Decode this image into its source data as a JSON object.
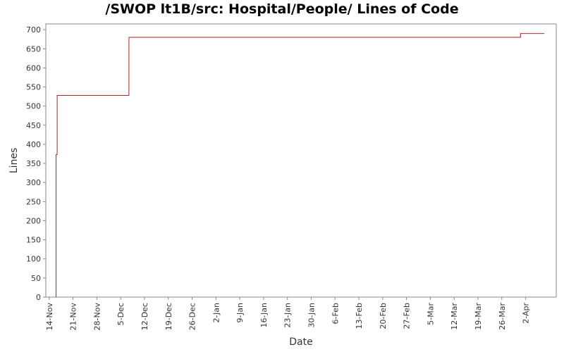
{
  "chart_data": {
    "type": "line",
    "title": "/SWOP lt1B/src: Hospital/People/ Lines of Code",
    "xlabel": "Date",
    "ylabel": "Lines",
    "ylim": [
      0,
      715
    ],
    "yticks": [
      0,
      50,
      100,
      150,
      200,
      250,
      300,
      350,
      400,
      450,
      500,
      550,
      600,
      650,
      700
    ],
    "x_range": [
      "2007-11-13",
      "2008-04-11"
    ],
    "xticks": [
      {
        "date": "2007-11-14",
        "label": "14-Nov"
      },
      {
        "date": "2007-11-21",
        "label": "21-Nov"
      },
      {
        "date": "2007-11-28",
        "label": "28-Nov"
      },
      {
        "date": "2007-12-05",
        "label": "5-Dec"
      },
      {
        "date": "2007-12-12",
        "label": "12-Dec"
      },
      {
        "date": "2007-12-19",
        "label": "19-Dec"
      },
      {
        "date": "2007-12-26",
        "label": "26-Dec"
      },
      {
        "date": "2008-01-02",
        "label": "2-Jan"
      },
      {
        "date": "2008-01-09",
        "label": "9-Jan"
      },
      {
        "date": "2008-01-16",
        "label": "16-Jan"
      },
      {
        "date": "2008-01-23",
        "label": "23-Jan"
      },
      {
        "date": "2008-01-30",
        "label": "30-Jan"
      },
      {
        "date": "2008-02-06",
        "label": "6-Feb"
      },
      {
        "date": "2008-02-13",
        "label": "13-Feb"
      },
      {
        "date": "2008-02-20",
        "label": "20-Feb"
      },
      {
        "date": "2008-02-27",
        "label": "27-Feb"
      },
      {
        "date": "2008-03-05",
        "label": "5-Mar"
      },
      {
        "date": "2008-03-12",
        "label": "12-Mar"
      },
      {
        "date": "2008-03-19",
        "label": "19-Mar"
      },
      {
        "date": "2008-03-26",
        "label": "26-Mar"
      },
      {
        "date": "2008-04-02",
        "label": "2-Apr"
      }
    ],
    "series": [
      {
        "color": "#b22222",
        "points": [
          {
            "x": "2007-11-16T00:00",
            "y": 0
          },
          {
            "x": "2007-11-16T00:00",
            "y": 373
          },
          {
            "x": "2007-11-16T08:00",
            "y": 373
          },
          {
            "x": "2007-11-16T08:00",
            "y": 528
          },
          {
            "x": "2007-12-07T10:00",
            "y": 528
          },
          {
            "x": "2007-12-07T10:00",
            "y": 680
          },
          {
            "x": "2008-03-31T12:00",
            "y": 680
          },
          {
            "x": "2008-03-31T12:00",
            "y": 690
          },
          {
            "x": "2008-04-07T12:00",
            "y": 690
          }
        ]
      }
    ],
    "grid": false,
    "legend": "none"
  }
}
